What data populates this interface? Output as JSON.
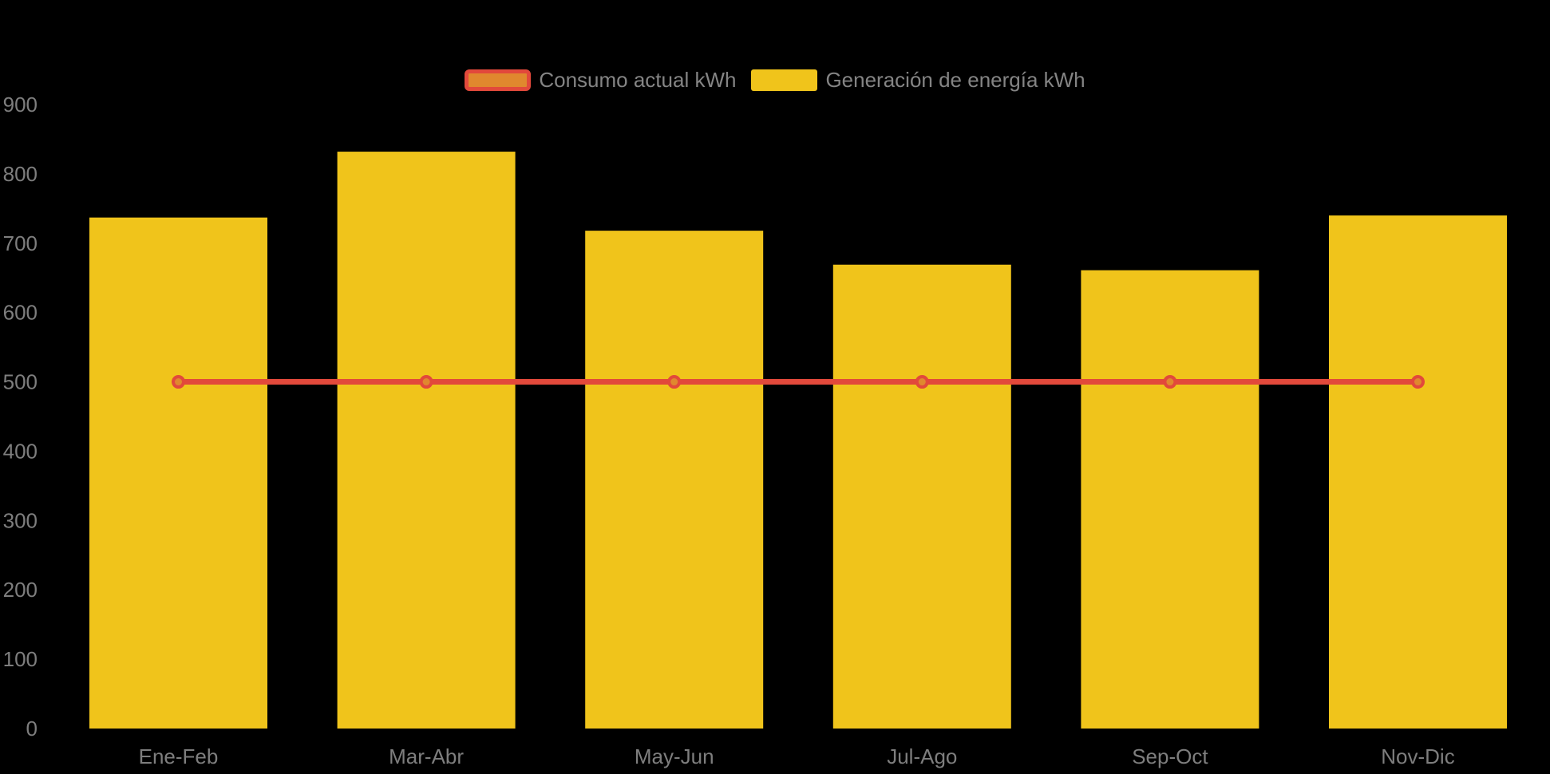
{
  "background": "#000000",
  "colors": {
    "bar_yellow": "#F0C41B",
    "line_red": "#E2493B",
    "point_orange_fill": "#E0882E",
    "axis_text": "#7E7E7E",
    "legend_text": "#848484"
  },
  "legend": {
    "items": [
      {
        "label": "Consumo actual kWh",
        "icon": "line-series-swatch",
        "fill": "#E0882E",
        "border": "#E2493B"
      },
      {
        "label": "Generación de energía kWh",
        "icon": "bar-series-swatch",
        "fill": "#F0C41B",
        "border": ""
      }
    ]
  },
  "chart_data": {
    "type": "combo",
    "categories": [
      "Ene-Feb",
      "Mar-Abr",
      "May-Jun",
      "Jul-Ago",
      "Sep-Oct",
      "Nov-Dic"
    ],
    "series": [
      {
        "name": "Consumo actual kWh",
        "type": "line",
        "values": [
          500,
          500,
          500,
          500,
          500,
          500
        ],
        "color": "#E2493B",
        "point_fill": "#E0882E"
      },
      {
        "name": "Generación de energía kWh",
        "type": "bar",
        "values": [
          737,
          832,
          718,
          669,
          661,
          740
        ],
        "color": "#F0C41B"
      }
    ],
    "title": "",
    "xlabel": "",
    "ylabel": "",
    "ylim": [
      0,
      900
    ],
    "yticks": [
      0,
      100,
      200,
      300,
      400,
      500,
      600,
      700,
      800,
      900
    ],
    "grid": false,
    "legend_position": "top-center",
    "background": "black"
  }
}
